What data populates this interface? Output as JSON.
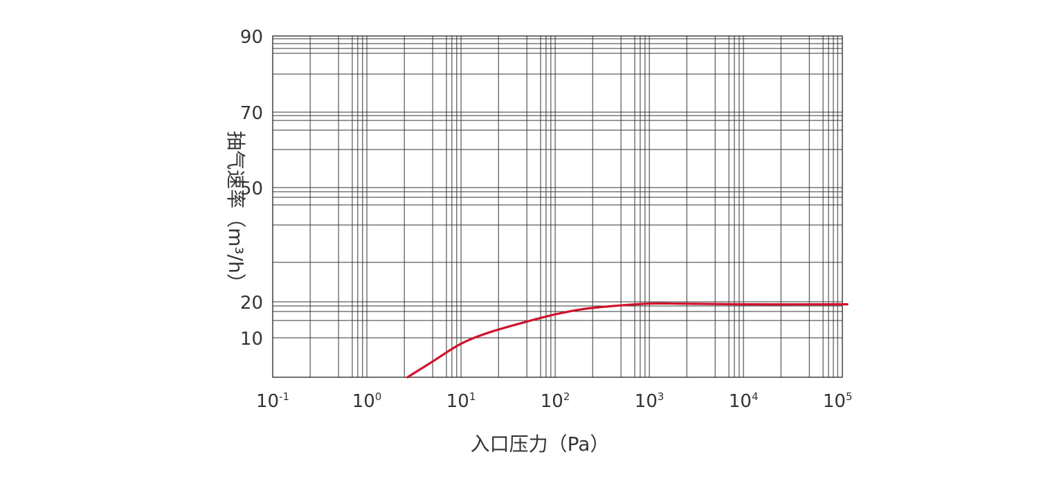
{
  "chart_data": {
    "type": "line",
    "title": "",
    "xlabel": "入口压力（Pa）",
    "ylabel": "抽气速率（m³/h）",
    "x_scale": "log",
    "x_ticks": [
      {
        "value": 0.1,
        "base": "10",
        "exp": "-1"
      },
      {
        "value": 1,
        "base": "10",
        "exp": "0"
      },
      {
        "value": 10,
        "base": "10",
        "exp": "1"
      },
      {
        "value": 100,
        "base": "10",
        "exp": "2"
      },
      {
        "value": 1000,
        "base": "10",
        "exp": "3"
      },
      {
        "value": 10000,
        "base": "10",
        "exp": "4"
      },
      {
        "value": 100000,
        "base": "10",
        "exp": "5"
      }
    ],
    "y_ticks": [
      {
        "value": 10,
        "label": "10"
      },
      {
        "value": 20,
        "label": "20"
      },
      {
        "value": 50,
        "label": "50"
      },
      {
        "value": 70,
        "label": "70"
      },
      {
        "value": 90,
        "label": "90"
      }
    ],
    "grid": true,
    "series": [
      {
        "color": "#d0112b",
        "points": [
          {
            "x": 2.7,
            "y": 0
          },
          {
            "x": 5,
            "y": 4
          },
          {
            "x": 10,
            "y": 8.5
          },
          {
            "x": 20,
            "y": 11.5
          },
          {
            "x": 50,
            "y": 14.5
          },
          {
            "x": 100,
            "y": 16.5
          },
          {
            "x": 200,
            "y": 18
          },
          {
            "x": 500,
            "y": 19
          },
          {
            "x": 1000,
            "y": 19.5
          },
          {
            "x": 2000,
            "y": 19.5
          },
          {
            "x": 10000,
            "y": 19.3
          },
          {
            "x": 100000,
            "y": 19.3
          },
          {
            "x": 120000,
            "y": 19.3
          }
        ]
      }
    ]
  }
}
